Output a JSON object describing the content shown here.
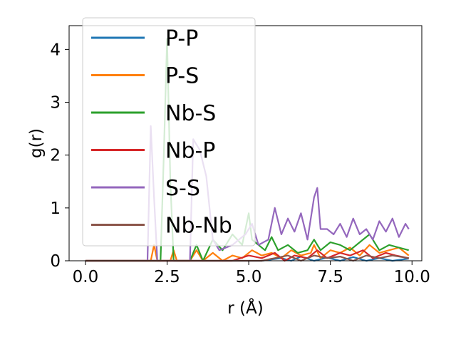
{
  "chart_data": {
    "type": "line",
    "xlabel": "r (Å)",
    "ylabel": "g(r)",
    "xlim": [
      -0.5,
      10.3
    ],
    "ylim": [
      0,
      4.45
    ],
    "xticks": [
      0.0,
      2.5,
      5.0,
      7.5,
      10.0
    ],
    "xtick_labels": [
      "0.0",
      "2.5",
      "5.0",
      "7.5",
      "10.0"
    ],
    "yticks": [
      0,
      1,
      2,
      3,
      4
    ],
    "ytick_labels": [
      "0",
      "1",
      "2",
      "3",
      "4"
    ],
    "grid": false,
    "legend_position": "upper-left",
    "series": [
      {
        "name": "P-P",
        "color": "#1f77b4",
        "x": [
          0.0,
          5.4,
          6.0,
          6.3,
          6.6,
          7.0,
          7.4,
          7.8,
          8.2,
          8.6,
          9.0,
          9.4,
          9.9
        ],
        "y": [
          0.0,
          0.0,
          0.05,
          0.0,
          0.08,
          0.0,
          0.06,
          0.0,
          0.07,
          0.0,
          0.05,
          0.0,
          0.04
        ]
      },
      {
        "name": "P-S",
        "color": "#ff7f0e",
        "x": [
          0.0,
          2.0,
          2.1,
          2.2,
          2.6,
          2.7,
          2.8,
          3.2,
          3.4,
          3.6,
          3.9,
          4.2,
          4.5,
          4.8,
          5.1,
          5.4,
          5.7,
          6.0,
          6.3,
          6.6,
          6.9,
          7.0,
          7.2,
          7.5,
          7.8,
          8.1,
          8.4,
          8.7,
          9.0,
          9.3,
          9.6,
          9.9
        ],
        "y": [
          0.0,
          0.0,
          0.3,
          0.0,
          0.0,
          0.2,
          0.0,
          0.0,
          0.2,
          0.0,
          0.15,
          0.0,
          0.1,
          0.05,
          0.2,
          0.1,
          0.15,
          0.05,
          0.2,
          0.1,
          0.15,
          0.3,
          0.05,
          0.2,
          0.15,
          0.25,
          0.1,
          0.3,
          0.15,
          0.2,
          0.25,
          0.1
        ]
      },
      {
        "name": "Nb-S",
        "color": "#2ca02c",
        "x": [
          0.0,
          2.3,
          2.4,
          2.5,
          2.6,
          2.7,
          3.2,
          3.4,
          3.6,
          3.9,
          4.2,
          4.5,
          4.8,
          5.0,
          5.1,
          5.3,
          5.5,
          5.7,
          5.9,
          6.2,
          6.5,
          6.8,
          7.0,
          7.2,
          7.5,
          7.8,
          8.1,
          8.4,
          8.7,
          9.0,
          9.3,
          9.6,
          9.9
        ],
        "y": [
          0.0,
          0.0,
          2.0,
          4.2,
          1.5,
          0.0,
          0.0,
          0.3,
          0.0,
          0.4,
          0.2,
          0.5,
          0.3,
          0.9,
          0.4,
          0.3,
          0.2,
          0.45,
          0.2,
          0.3,
          0.15,
          0.2,
          0.4,
          0.2,
          0.35,
          0.3,
          0.2,
          0.35,
          0.5,
          0.2,
          0.3,
          0.25,
          0.2
        ]
      },
      {
        "name": "Nb-P",
        "color": "#d62728",
        "x": [
          0.0,
          4.5,
          5.0,
          5.4,
          5.8,
          6.1,
          6.4,
          6.8,
          7.1,
          7.4,
          7.8,
          8.1,
          8.5,
          8.8,
          9.2,
          9.5,
          9.9
        ],
        "y": [
          0.0,
          0.0,
          0.1,
          0.05,
          0.15,
          0.0,
          0.1,
          0.05,
          0.2,
          0.05,
          0.15,
          0.1,
          0.2,
          0.05,
          0.15,
          0.1,
          0.05
        ]
      },
      {
        "name": "S-S",
        "color": "#9467bd",
        "x": [
          0.0,
          1.9,
          2.0,
          2.1,
          2.2,
          3.2,
          3.3,
          3.5,
          3.7,
          3.9,
          4.1,
          4.5,
          4.9,
          5.1,
          5.3,
          5.6,
          5.8,
          6.0,
          6.2,
          6.4,
          6.6,
          6.8,
          7.0,
          7.1,
          7.2,
          7.4,
          7.6,
          7.8,
          8.0,
          8.2,
          8.4,
          8.6,
          8.8,
          9.0,
          9.2,
          9.4,
          9.6,
          9.8,
          9.9
        ],
        "y": [
          0.0,
          0.0,
          2.55,
          1.2,
          0.0,
          0.0,
          2.3,
          2.1,
          1.6,
          0.4,
          0.2,
          0.3,
          0.5,
          0.7,
          0.3,
          0.4,
          1.0,
          0.5,
          0.8,
          0.55,
          0.9,
          0.4,
          1.2,
          1.38,
          0.6,
          0.6,
          0.5,
          0.7,
          0.45,
          0.8,
          0.5,
          0.6,
          0.4,
          0.75,
          0.55,
          0.8,
          0.45,
          0.7,
          0.6
        ]
      },
      {
        "name": "Nb-Nb",
        "color": "#8c564b",
        "x": [
          0.0,
          5.4,
          5.8,
          6.2,
          6.6,
          7.0,
          7.4,
          7.8,
          8.2,
          8.6,
          9.0,
          9.4,
          9.9
        ],
        "y": [
          0.0,
          0.0,
          0.05,
          0.1,
          0.0,
          0.1,
          0.05,
          0.08,
          0.0,
          0.1,
          0.05,
          0.1,
          0.05
        ]
      }
    ]
  }
}
